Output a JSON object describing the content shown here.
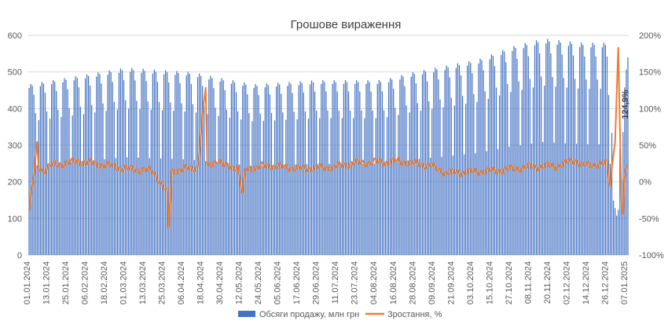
{
  "chart_data": {
    "type": "bar",
    "title": "Грошове вираження",
    "colors": {
      "bars": "#4472C4",
      "line": "#ED7D31",
      "grid": "#D9D9D9",
      "text": "#595959"
    },
    "y_left": {
      "ylim": [
        0,
        600
      ],
      "ticks": [
        "0",
        "100",
        "200",
        "300",
        "400",
        "500",
        "600"
      ]
    },
    "y_right": {
      "ylim": [
        -100,
        200
      ],
      "ticks": [
        "-100%",
        "-50%",
        "0%",
        "50%",
        "100%",
        "150%",
        "200%"
      ]
    },
    "x_tick_labels": [
      "01.01.2024",
      "13.01.2024",
      "25.01.2024",
      "06.02.2024",
      "18.02.2024",
      "01.03.2024",
      "13.03.2024",
      "25.03.2024",
      "06.04.2024",
      "18.04.2024",
      "30.04.2024",
      "12.05.2024",
      "24.05.2024",
      "05.06.2024",
      "17.06.2024",
      "29.06.2024",
      "11.07.2024",
      "23.07.2024",
      "04.08.2024",
      "16.08.2024",
      "28.08.2024",
      "09.09.2024",
      "21.09.2024",
      "03.10.2024",
      "15.10.2024",
      "27.10.2024",
      "08.11.2024",
      "20.11.2024",
      "02.12.2024",
      "14.12.2024",
      "26.12.2024",
      "07.01.2025"
    ],
    "n_days": 374,
    "bar_weekly_pattern": [
      450,
      460,
      455,
      430,
      380,
      240,
      360
    ],
    "bar_anchors": [
      [
        0,
        410
      ],
      [
        60,
        450
      ],
      [
        100,
        440
      ],
      [
        140,
        410
      ],
      [
        180,
        420
      ],
      [
        220,
        420
      ],
      [
        240,
        440
      ],
      [
        280,
        470
      ],
      [
        300,
        500
      ],
      [
        320,
        520
      ],
      [
        345,
        510
      ],
      [
        360,
        510
      ],
      [
        366,
        240
      ],
      [
        373,
        480
      ]
    ],
    "line_anchors": [
      [
        0,
        -40
      ],
      [
        3,
        10
      ],
      [
        5,
        50
      ],
      [
        6,
        20
      ],
      [
        9,
        15
      ],
      [
        13,
        22
      ],
      [
        30,
        28
      ],
      [
        50,
        22
      ],
      [
        60,
        18
      ],
      [
        77,
        15
      ],
      [
        86,
        -15
      ],
      [
        87,
        -65
      ],
      [
        89,
        15
      ],
      [
        105,
        20
      ],
      [
        110,
        130
      ],
      [
        111,
        20
      ],
      [
        117,
        30
      ],
      [
        121,
        22
      ],
      [
        130,
        20
      ],
      [
        133,
        -18
      ],
      [
        135,
        18
      ],
      [
        150,
        22
      ],
      [
        170,
        18
      ],
      [
        190,
        20
      ],
      [
        200,
        25
      ],
      [
        230,
        28
      ],
      [
        250,
        22
      ],
      [
        260,
        12
      ],
      [
        290,
        15
      ],
      [
        310,
        20
      ],
      [
        330,
        22
      ],
      [
        340,
        30
      ],
      [
        345,
        22
      ],
      [
        360,
        25
      ],
      [
        362,
        -5
      ],
      [
        365,
        60
      ],
      [
        367,
        180
      ],
      [
        369,
        -25
      ],
      [
        370,
        -50
      ],
      [
        371,
        0
      ],
      [
        372,
        20
      ],
      [
        373,
        25
      ]
    ],
    "annotations": [
      {
        "text": "124,9%",
        "x": 371,
        "y": 124.9
      }
    ],
    "series": [
      {
        "name": "Обсяги продажу, млн грн",
        "axis": "left",
        "kind": "bar"
      },
      {
        "name": "Зростання, %",
        "axis": "right",
        "kind": "line"
      }
    ],
    "legend": "bottom",
    "grid": true
  }
}
